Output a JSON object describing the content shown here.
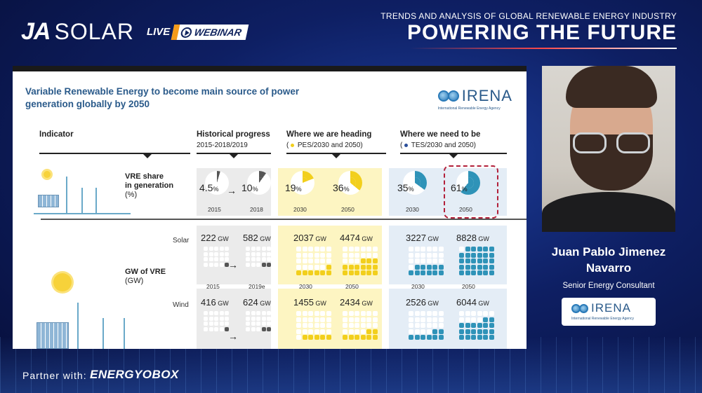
{
  "header": {
    "brand_ja": "JA",
    "brand_solar": "SOLAR",
    "live": "LIVE",
    "webinar": "WEBINAR",
    "event_subtitle": "TRENDS AND ANALYSIS OF GLOBAL RENEWABLE ENERGY INDUSTRY",
    "event_title": "POWERING THE FUTURE"
  },
  "slide": {
    "title": "Variable Renewable Energy to become main source of power generation globally by 2050",
    "irena_logo": "IRENA",
    "irena_agency": "International Renewable Energy Agency",
    "columns": {
      "indicator": "Indicator",
      "historical": "Historical progress",
      "historical_sub": "2015-2018/2019",
      "heading": "Where we are heading",
      "heading_sub": "PES/2030 and 2050)",
      "need": "Where we need to be",
      "need_sub": "TES/2030 and 2050)"
    },
    "vre_share": {
      "label": "VRE share",
      "label2": "in generation",
      "unit": "(%)",
      "values": [
        {
          "value": "4.5",
          "pct": "%",
          "year": "2015",
          "share": 4.5,
          "color": "#555555"
        },
        {
          "value": "10",
          "pct": "%",
          "year": "2018",
          "share": 10,
          "color": "#555555"
        },
        {
          "value": "19",
          "pct": "%",
          "year": "2030",
          "share": 19,
          "color": "#f2cf1c"
        },
        {
          "value": "36",
          "pct": "%",
          "year": "2050",
          "share": 36,
          "color": "#f2cf1c"
        },
        {
          "value": "35",
          "pct": "%",
          "year": "2030",
          "share": 35,
          "color": "#2f93b8"
        },
        {
          "value": "61",
          "pct": "%",
          "year": "2050",
          "share": 61,
          "color": "#2f93b8"
        }
      ]
    },
    "gw_vre": {
      "label": "GW of VRE",
      "unit": "(GW)",
      "solar_label": "Solar",
      "wind_label": "Wind",
      "gw_unit": "GW",
      "solar": [
        "222",
        "582",
        "2037",
        "4474",
        "3227",
        "8828"
      ],
      "solar_years": [
        "2015",
        "2019e",
        "2030",
        "2050",
        "2030",
        "2050"
      ],
      "wind": [
        "416",
        "624",
        "1455",
        "2434",
        "2526",
        "6044"
      ]
    }
  },
  "speaker": {
    "name_line1": "Juan Pablo Jimenez",
    "name_line2": "Navarro",
    "role": "Senior Energy Consultant",
    "irena": "IRENA",
    "irena_agency": "International Renewable Energy Agency"
  },
  "footer": {
    "partner": "Partner with:",
    "partner_logo": "ENERGYOBOX"
  },
  "colors": {
    "grey": "#555555",
    "yellow": "#f2cf1c",
    "blue": "#2f93b8"
  }
}
